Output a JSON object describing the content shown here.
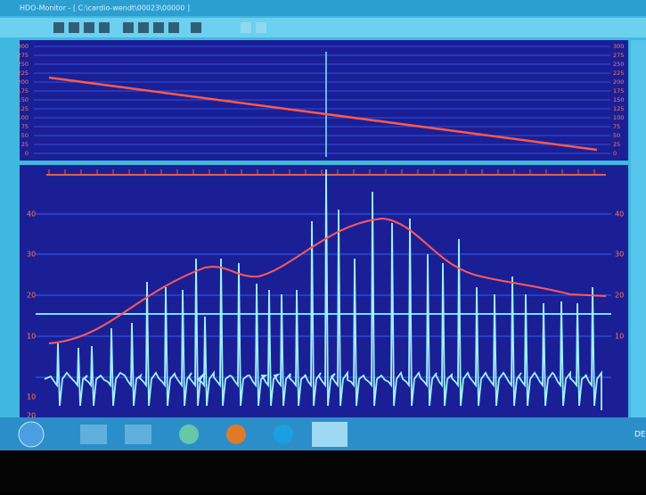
{
  "window": {
    "title": "HDO-Monitor - [ C:\\cardio-wendt\\00023\\00000 ]"
  },
  "top_panel": {
    "left_axis": [
      "300",
      "275",
      "250",
      "225",
      "200",
      "175",
      "150",
      "125",
      "100",
      "75",
      "50",
      "25",
      "0"
    ],
    "right_axis": [
      "300",
      "275",
      "250",
      "225",
      "200",
      "175",
      "150",
      "125",
      "100",
      "75",
      "50",
      "25",
      "0"
    ]
  },
  "bottom_panel": {
    "left_axis": [
      "40",
      "30",
      "20",
      "10",
      "10",
      "20"
    ],
    "right_axis": [
      "40",
      "30",
      "20",
      "10"
    ]
  },
  "taskbar": {
    "language": "DE"
  }
}
